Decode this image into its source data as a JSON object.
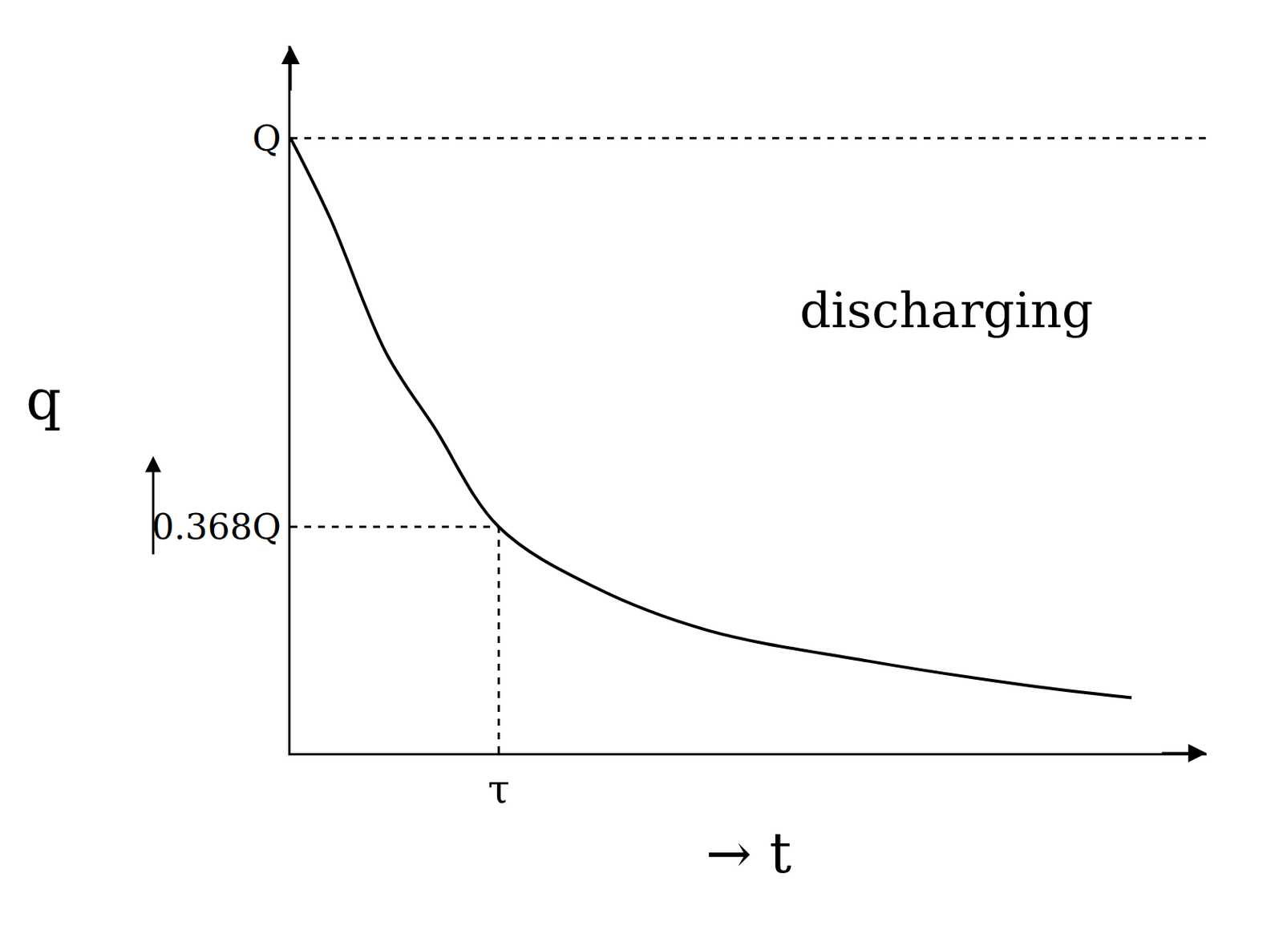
{
  "chart_data": {
    "type": "line",
    "x_label": "→ t",
    "y_label": "q",
    "annotation": "discharging",
    "x": [
      0,
      0.19,
      0.46,
      0.69,
      1,
      1.46,
      2.0,
      2.77,
      3.54,
      4.04
    ],
    "values": [
      1,
      0.87,
      0.65,
      0.53,
      0.368,
      0.27,
      0.2,
      0.15,
      0.11,
      0.09
    ],
    "color": "#000000",
    "line_style": "solid",
    "xlim": [
      0,
      4.4
    ],
    "ylim": [
      0,
      1.15
    ],
    "xticks": [
      {
        "value": 1,
        "label": "τ"
      }
    ],
    "yticks": [
      {
        "value": 1,
        "label": "Q"
      },
      {
        "value": 0.368,
        "label": "0.368Q"
      }
    ],
    "grid": false
  }
}
